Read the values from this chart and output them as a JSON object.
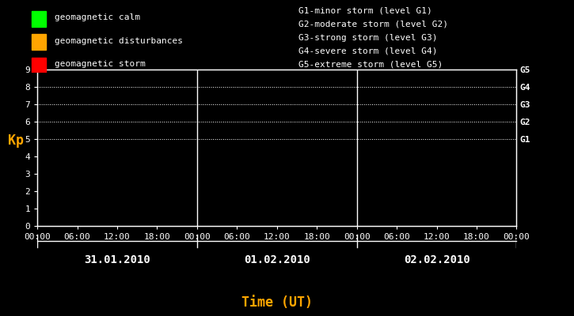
{
  "bg_color": "#000000",
  "plot_bg_color": "#000000",
  "text_color": "#ffffff",
  "orange_color": "#ffa500",
  "ylabel": "Kp",
  "xlabel": "Time (UT)",
  "ylim": [
    0,
    9
  ],
  "yticks": [
    0,
    1,
    2,
    3,
    4,
    5,
    6,
    7,
    8,
    9
  ],
  "days": [
    "31.01.2010",
    "01.02.2010",
    "02.02.2010"
  ],
  "time_labels": [
    "00:00",
    "06:00",
    "12:00",
    "18:00"
  ],
  "legend_items": [
    {
      "label": "geomagnetic calm",
      "color": "#00ff00"
    },
    {
      "label": "geomagnetic disturbances",
      "color": "#ffa500"
    },
    {
      "label": "geomagnetic storm",
      "color": "#ff0000"
    }
  ],
  "g_labels": [
    "G1-minor storm (level G1)",
    "G2-moderate storm (level G2)",
    "G3-strong storm (level G3)",
    "G4-severe storm (level G4)",
    "G5-extreme storm (level G5)"
  ],
  "g_right_labels": [
    {
      "label": "G5",
      "y": 9
    },
    {
      "label": "G4",
      "y": 8
    },
    {
      "label": "G3",
      "y": 7
    },
    {
      "label": "G2",
      "y": 6
    },
    {
      "label": "G1",
      "y": 5
    }
  ],
  "dotted_y_lines": [
    5,
    6,
    7,
    8,
    9
  ],
  "num_days": 3,
  "ticks_per_day": 4,
  "font_family": "monospace",
  "font_size": 8,
  "legend_font_size": 8,
  "axis_label_fontsize": 10
}
